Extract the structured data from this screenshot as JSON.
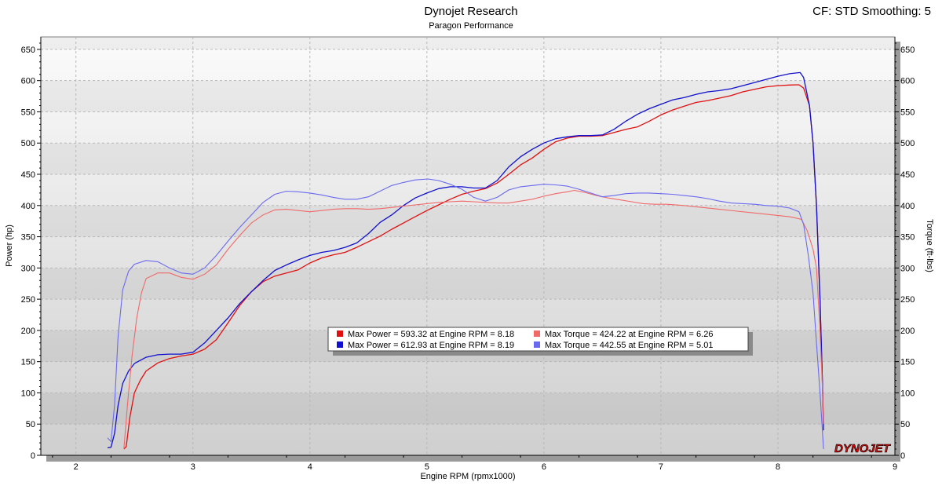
{
  "header": {
    "title": "Dynojet Research",
    "subtitle": "Paragon Performance",
    "cf_label": "CF: STD Smoothing: 5"
  },
  "logo_text": "DYNOJET",
  "chart_data": {
    "type": "line",
    "xlabel": "Engine RPM (rpmx1000)",
    "ylabel_left": "Power (hp)",
    "ylabel_right": "Torque (ft-lbs)",
    "xlim": [
      1.7,
      9.0
    ],
    "ylim": [
      0,
      670
    ],
    "x_ticks": [
      2,
      3,
      4,
      5,
      6,
      7,
      8,
      9
    ],
    "y_ticks": [
      0,
      50,
      100,
      150,
      200,
      250,
      300,
      350,
      400,
      450,
      500,
      550,
      600,
      650
    ],
    "grid": true,
    "legend": {
      "placement": "center",
      "entries": [
        {
          "text": "Max Power = 593.32 at Engine RPM = 8.18",
          "color": "#e01010"
        },
        {
          "text": "Max Power = 612.93 at Engine RPM = 8.19",
          "color": "#1010d0"
        },
        {
          "text": "Max Torque = 424.22 at Engine RPM = 6.26",
          "color": "#f06a6a"
        },
        {
          "text": "Max Torque = 442.55 at Engine RPM = 5.01",
          "color": "#6a6af0"
        }
      ]
    },
    "series": [
      {
        "color": "#e01010",
        "width": 1.3,
        "points": [
          [
            2.41,
            10
          ],
          [
            2.43,
            14
          ],
          [
            2.46,
            60
          ],
          [
            2.5,
            100
          ],
          [
            2.55,
            120
          ],
          [
            2.6,
            135
          ],
          [
            2.7,
            148
          ],
          [
            2.8,
            155
          ],
          [
            2.9,
            159
          ],
          [
            3.0,
            162
          ],
          [
            3.1,
            170
          ],
          [
            3.2,
            185
          ],
          [
            3.3,
            212
          ],
          [
            3.4,
            240
          ],
          [
            3.5,
            262
          ],
          [
            3.6,
            278
          ],
          [
            3.7,
            287
          ],
          [
            3.8,
            292
          ],
          [
            3.9,
            297
          ],
          [
            4.0,
            308
          ],
          [
            4.1,
            316
          ],
          [
            4.2,
            321
          ],
          [
            4.3,
            325
          ],
          [
            4.4,
            333
          ],
          [
            4.5,
            342
          ],
          [
            4.6,
            351
          ],
          [
            4.7,
            362
          ],
          [
            4.8,
            372
          ],
          [
            4.9,
            382
          ],
          [
            5.0,
            392
          ],
          [
            5.1,
            401
          ],
          [
            5.2,
            410
          ],
          [
            5.3,
            418
          ],
          [
            5.4,
            423
          ],
          [
            5.5,
            427
          ],
          [
            5.6,
            436
          ],
          [
            5.7,
            450
          ],
          [
            5.8,
            465
          ],
          [
            5.9,
            476
          ],
          [
            6.0,
            490
          ],
          [
            6.1,
            502
          ],
          [
            6.2,
            508
          ],
          [
            6.3,
            511
          ],
          [
            6.4,
            511
          ],
          [
            6.5,
            512
          ],
          [
            6.6,
            517
          ],
          [
            6.7,
            522
          ],
          [
            6.8,
            526
          ],
          [
            6.9,
            535
          ],
          [
            7.0,
            545
          ],
          [
            7.1,
            553
          ],
          [
            7.2,
            559
          ],
          [
            7.3,
            565
          ],
          [
            7.4,
            568
          ],
          [
            7.5,
            572
          ],
          [
            7.6,
            576
          ],
          [
            7.7,
            582
          ],
          [
            7.8,
            586
          ],
          [
            7.9,
            590
          ],
          [
            8.0,
            592
          ],
          [
            8.1,
            593
          ],
          [
            8.18,
            593.3
          ],
          [
            8.22,
            588
          ],
          [
            8.27,
            560
          ],
          [
            8.3,
            500
          ],
          [
            8.33,
            400
          ],
          [
            8.36,
            250
          ],
          [
            8.38,
            120
          ],
          [
            8.39,
            50
          ]
        ]
      },
      {
        "color": "#1010d0",
        "width": 1.3,
        "points": [
          [
            2.27,
            12
          ],
          [
            2.3,
            13
          ],
          [
            2.33,
            35
          ],
          [
            2.36,
            80
          ],
          [
            2.4,
            115
          ],
          [
            2.45,
            135
          ],
          [
            2.5,
            147
          ],
          [
            2.6,
            157
          ],
          [
            2.7,
            161
          ],
          [
            2.8,
            162
          ],
          [
            2.9,
            162
          ],
          [
            3.0,
            165
          ],
          [
            3.1,
            180
          ],
          [
            3.2,
            200
          ],
          [
            3.3,
            220
          ],
          [
            3.4,
            243
          ],
          [
            3.5,
            262
          ],
          [
            3.6,
            280
          ],
          [
            3.7,
            296
          ],
          [
            3.8,
            305
          ],
          [
            3.9,
            313
          ],
          [
            4.0,
            320
          ],
          [
            4.1,
            325
          ],
          [
            4.2,
            328
          ],
          [
            4.3,
            333
          ],
          [
            4.4,
            340
          ],
          [
            4.5,
            355
          ],
          [
            4.6,
            373
          ],
          [
            4.7,
            385
          ],
          [
            4.8,
            400
          ],
          [
            4.9,
            412
          ],
          [
            5.0,
            420
          ],
          [
            5.1,
            427
          ],
          [
            5.2,
            430
          ],
          [
            5.3,
            430
          ],
          [
            5.4,
            428
          ],
          [
            5.5,
            428
          ],
          [
            5.6,
            440
          ],
          [
            5.7,
            462
          ],
          [
            5.8,
            478
          ],
          [
            5.9,
            490
          ],
          [
            6.0,
            500
          ],
          [
            6.1,
            507
          ],
          [
            6.2,
            510
          ],
          [
            6.3,
            512
          ],
          [
            6.4,
            512
          ],
          [
            6.5,
            513
          ],
          [
            6.6,
            522
          ],
          [
            6.7,
            535
          ],
          [
            6.8,
            546
          ],
          [
            6.9,
            555
          ],
          [
            7.0,
            562
          ],
          [
            7.1,
            569
          ],
          [
            7.2,
            573
          ],
          [
            7.3,
            578
          ],
          [
            7.4,
            582
          ],
          [
            7.5,
            584
          ],
          [
            7.6,
            587
          ],
          [
            7.7,
            592
          ],
          [
            7.8,
            597
          ],
          [
            7.9,
            602
          ],
          [
            8.0,
            607
          ],
          [
            8.1,
            611
          ],
          [
            8.19,
            612.9
          ],
          [
            8.22,
            605
          ],
          [
            8.27,
            560
          ],
          [
            8.3,
            500
          ],
          [
            8.33,
            400
          ],
          [
            8.36,
            250
          ],
          [
            8.38,
            120
          ],
          [
            8.39,
            40
          ]
        ]
      },
      {
        "color": "#f06a6a",
        "width": 1.1,
        "points": [
          [
            2.41,
            10
          ],
          [
            2.44,
            80
          ],
          [
            2.48,
            160
          ],
          [
            2.52,
            220
          ],
          [
            2.56,
            260
          ],
          [
            2.6,
            283
          ],
          [
            2.7,
            292
          ],
          [
            2.8,
            292
          ],
          [
            2.9,
            285
          ],
          [
            3.0,
            282
          ],
          [
            3.1,
            290
          ],
          [
            3.2,
            305
          ],
          [
            3.3,
            330
          ],
          [
            3.4,
            352
          ],
          [
            3.5,
            372
          ],
          [
            3.6,
            385
          ],
          [
            3.7,
            393
          ],
          [
            3.8,
            394
          ],
          [
            3.9,
            392
          ],
          [
            4.0,
            390
          ],
          [
            4.1,
            392
          ],
          [
            4.2,
            394
          ],
          [
            4.3,
            395
          ],
          [
            4.4,
            395
          ],
          [
            4.5,
            394
          ],
          [
            4.6,
            395
          ],
          [
            4.7,
            397
          ],
          [
            4.8,
            399
          ],
          [
            4.9,
            401
          ],
          [
            5.0,
            403
          ],
          [
            5.1,
            405
          ],
          [
            5.2,
            406
          ],
          [
            5.3,
            407
          ],
          [
            5.4,
            406
          ],
          [
            5.5,
            405
          ],
          [
            5.6,
            404
          ],
          [
            5.7,
            404
          ],
          [
            5.8,
            407
          ],
          [
            5.9,
            410
          ],
          [
            6.0,
            415
          ],
          [
            6.1,
            419
          ],
          [
            6.2,
            422
          ],
          [
            6.26,
            424.2
          ],
          [
            6.35,
            421
          ],
          [
            6.45,
            416
          ],
          [
            6.55,
            412
          ],
          [
            6.65,
            409
          ],
          [
            6.75,
            406
          ],
          [
            6.85,
            403
          ],
          [
            6.95,
            402
          ],
          [
            7.05,
            402
          ],
          [
            7.2,
            400
          ],
          [
            7.35,
            397
          ],
          [
            7.5,
            394
          ],
          [
            7.65,
            391
          ],
          [
            7.8,
            388
          ],
          [
            7.95,
            385
          ],
          [
            8.1,
            382
          ],
          [
            8.2,
            378
          ],
          [
            8.25,
            360
          ],
          [
            8.3,
            330
          ],
          [
            8.33,
            300
          ],
          [
            8.36,
            200
          ],
          [
            8.38,
            110
          ],
          [
            8.39,
            50
          ]
        ]
      },
      {
        "color": "#6a6af0",
        "width": 1.1,
        "points": [
          [
            2.27,
            28
          ],
          [
            2.3,
            22
          ],
          [
            2.33,
            80
          ],
          [
            2.36,
            190
          ],
          [
            2.4,
            265
          ],
          [
            2.45,
            295
          ],
          [
            2.5,
            306
          ],
          [
            2.6,
            312
          ],
          [
            2.7,
            310
          ],
          [
            2.8,
            300
          ],
          [
            2.9,
            292
          ],
          [
            3.0,
            290
          ],
          [
            3.1,
            300
          ],
          [
            3.2,
            320
          ],
          [
            3.3,
            343
          ],
          [
            3.4,
            365
          ],
          [
            3.5,
            385
          ],
          [
            3.6,
            405
          ],
          [
            3.7,
            418
          ],
          [
            3.8,
            423
          ],
          [
            3.9,
            422
          ],
          [
            4.0,
            420
          ],
          [
            4.1,
            417
          ],
          [
            4.2,
            413
          ],
          [
            4.3,
            410
          ],
          [
            4.4,
            410
          ],
          [
            4.5,
            414
          ],
          [
            4.6,
            423
          ],
          [
            4.7,
            432
          ],
          [
            4.8,
            437
          ],
          [
            4.9,
            441
          ],
          [
            5.01,
            442.5
          ],
          [
            5.1,
            440
          ],
          [
            5.2,
            434
          ],
          [
            5.3,
            426
          ],
          [
            5.4,
            413
          ],
          [
            5.5,
            407
          ],
          [
            5.6,
            413
          ],
          [
            5.7,
            425
          ],
          [
            5.8,
            430
          ],
          [
            5.9,
            432
          ],
          [
            6.0,
            434
          ],
          [
            6.1,
            433
          ],
          [
            6.2,
            431
          ],
          [
            6.3,
            426
          ],
          [
            6.4,
            420
          ],
          [
            6.5,
            414
          ],
          [
            6.6,
            416
          ],
          [
            6.7,
            419
          ],
          [
            6.8,
            420
          ],
          [
            6.9,
            420
          ],
          [
            7.0,
            419
          ],
          [
            7.1,
            418
          ],
          [
            7.2,
            416
          ],
          [
            7.3,
            414
          ],
          [
            7.4,
            411
          ],
          [
            7.5,
            407
          ],
          [
            7.6,
            404
          ],
          [
            7.7,
            403
          ],
          [
            7.8,
            402
          ],
          [
            7.9,
            400
          ],
          [
            8.0,
            399
          ],
          [
            8.1,
            396
          ],
          [
            8.18,
            390
          ],
          [
            8.22,
            370
          ],
          [
            8.26,
            320
          ],
          [
            8.3,
            260
          ],
          [
            8.33,
            180
          ],
          [
            8.36,
            100
          ],
          [
            8.38,
            40
          ],
          [
            8.39,
            10
          ]
        ]
      }
    ]
  }
}
